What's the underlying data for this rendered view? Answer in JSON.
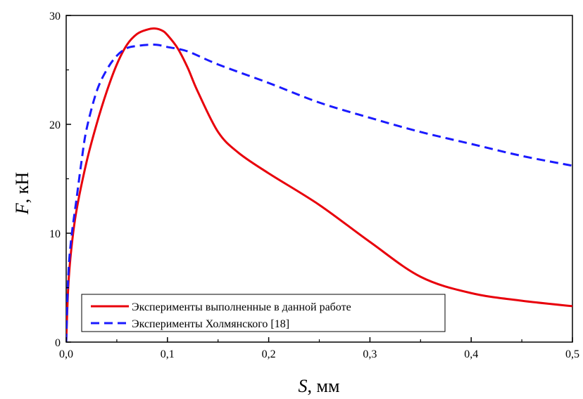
{
  "chart_data": {
    "type": "line",
    "title": "",
    "xlabel": {
      "var": "S",
      "unit": ", мм"
    },
    "ylabel": {
      "var": "F",
      "unit": ", кН"
    },
    "xlim": [
      0,
      0.5
    ],
    "ylim": [
      0,
      30
    ],
    "x_ticks": [
      "0,0",
      "0,1",
      "0,2",
      "0,3",
      "0,4",
      "0,5"
    ],
    "y_ticks": [
      "0",
      "10",
      "20",
      "30"
    ],
    "grid": false,
    "legend_position": "bottom-left",
    "series": [
      {
        "name": "Эксперименты выполненные в данной работе",
        "color": "#e8000b",
        "style": "solid",
        "x": [
          0,
          0.002,
          0.005,
          0.01,
          0.02,
          0.03,
          0.04,
          0.05,
          0.06,
          0.07,
          0.08,
          0.088,
          0.095,
          0.1,
          0.11,
          0.12,
          0.13,
          0.15,
          0.17,
          0.2,
          0.25,
          0.3,
          0.35,
          0.4,
          0.45,
          0.5
        ],
        "y": [
          0,
          5,
          8.5,
          12,
          16.5,
          20,
          23,
          25.5,
          27.3,
          28.3,
          28.7,
          28.8,
          28.6,
          28.2,
          27,
          25.2,
          23,
          19.3,
          17.4,
          15.5,
          12.6,
          9.2,
          6,
          4.5,
          3.8,
          3.3
        ]
      },
      {
        "name": "Эксперименты Холмянского [18]",
        "color": "#1a1aff",
        "style": "dashed",
        "x": [
          0,
          0.002,
          0.005,
          0.01,
          0.015,
          0.02,
          0.03,
          0.04,
          0.05,
          0.06,
          0.07,
          0.08,
          0.09,
          0.1,
          0.12,
          0.15,
          0.2,
          0.25,
          0.3,
          0.35,
          0.4,
          0.45,
          0.5
        ],
        "y": [
          0,
          6,
          9.5,
          13,
          16.5,
          19.5,
          23,
          25,
          26.3,
          27,
          27.2,
          27.3,
          27.3,
          27.1,
          26.7,
          25.5,
          23.8,
          22,
          20.6,
          19.3,
          18.2,
          17.1,
          16.2
        ]
      }
    ]
  }
}
